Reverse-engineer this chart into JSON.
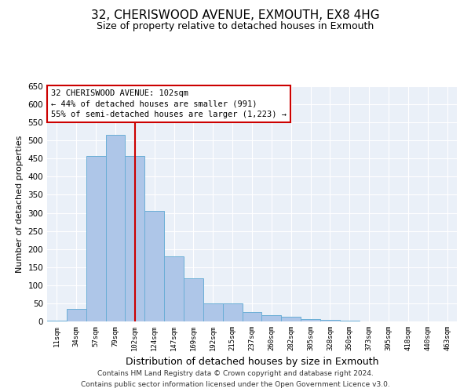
{
  "title": "32, CHERISWOOD AVENUE, EXMOUTH, EX8 4HG",
  "subtitle": "Size of property relative to detached houses in Exmouth",
  "xlabel": "Distribution of detached houses by size in Exmouth",
  "ylabel": "Number of detached properties",
  "footnote1": "Contains HM Land Registry data © Crown copyright and database right 2024.",
  "footnote2": "Contains public sector information licensed under the Open Government Licence v3.0.",
  "bar_labels": [
    "11sqm",
    "34sqm",
    "57sqm",
    "79sqm",
    "102sqm",
    "124sqm",
    "147sqm",
    "169sqm",
    "192sqm",
    "215sqm",
    "237sqm",
    "260sqm",
    "282sqm",
    "305sqm",
    "328sqm",
    "350sqm",
    "373sqm",
    "395sqm",
    "418sqm",
    "440sqm",
    "463sqm"
  ],
  "bar_values": [
    3,
    35,
    457,
    515,
    457,
    305,
    180,
    120,
    50,
    50,
    27,
    18,
    12,
    7,
    4,
    3,
    1,
    1,
    1,
    1,
    1
  ],
  "bar_color": "#aec6e8",
  "bar_edgecolor": "#6aaed6",
  "background_color": "#eaf0f8",
  "grid_color": "#ffffff",
  "vline_x": 4,
  "vline_color": "#cc0000",
  "annotation_text": "32 CHERISWOOD AVENUE: 102sqm\n← 44% of detached houses are smaller (991)\n55% of semi-detached houses are larger (1,223) →",
  "annotation_box_color": "#cc0000",
  "ylim": [
    0,
    650
  ],
  "yticks": [
    0,
    50,
    100,
    150,
    200,
    250,
    300,
    350,
    400,
    450,
    500,
    550,
    600,
    650
  ],
  "title_fontsize": 11,
  "subtitle_fontsize": 9,
  "annot_fontsize": 7.5,
  "xlabel_fontsize": 9,
  "ylabel_fontsize": 8,
  "footnote_fontsize": 6.5,
  "fig_width": 6.0,
  "fig_height": 5.0,
  "fig_dpi": 100
}
